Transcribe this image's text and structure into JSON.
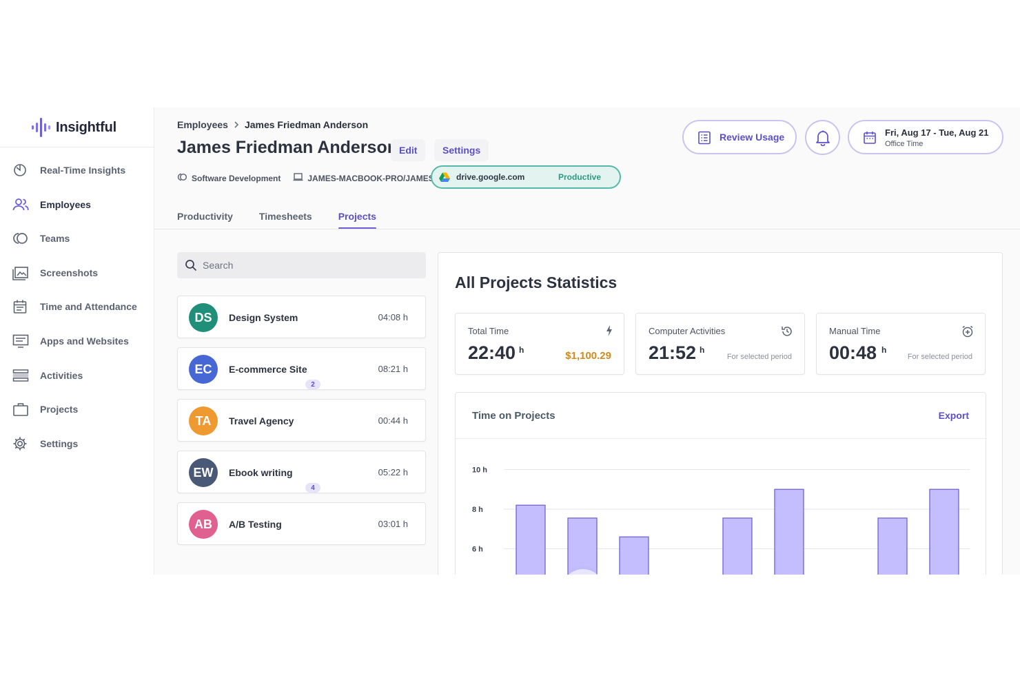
{
  "app": {
    "name": "Insightful"
  },
  "colors": {
    "accent": "#5a4fc8",
    "bar_fill": "#c4beff",
    "bar_stroke": "#6f63d4",
    "money": "#d08a1e",
    "productive": "#2a9a85"
  },
  "sidebar": {
    "items": [
      {
        "label": "Real-Time Insights",
        "icon": "realtime-icon"
      },
      {
        "label": "Employees",
        "icon": "users-icon",
        "active": true
      },
      {
        "label": "Teams",
        "icon": "teams-icon"
      },
      {
        "label": "Screenshots",
        "icon": "screenshots-icon"
      },
      {
        "label": "Time and Attendance",
        "icon": "calendar-icon"
      },
      {
        "label": "Apps and Websites",
        "icon": "monitor-icon"
      },
      {
        "label": "Activities",
        "icon": "activities-icon"
      },
      {
        "label": "Projects",
        "icon": "briefcase-icon"
      },
      {
        "label": "Settings",
        "icon": "gear-icon"
      }
    ]
  },
  "header": {
    "breadcrumb": {
      "parent": "Employees",
      "separator": ">",
      "current": "James Friedman Anderson"
    },
    "title": "James Friedman Anderson",
    "edit_label": "Edit",
    "settings_label": "Settings",
    "team": "Software Development",
    "computer": "JAMES-MACBOOK-PRO/JAMES",
    "site": {
      "domain": "drive.google.com",
      "status": "Productive"
    },
    "review_label": "Review Usage",
    "date_range": "Fri, Aug 17 - Tue, Aug 21",
    "date_sub": "Office Time"
  },
  "tabs": [
    {
      "label": "Productivity",
      "active": false
    },
    {
      "label": "Timesheets",
      "active": false
    },
    {
      "label": "Projects",
      "active": true
    }
  ],
  "search": {
    "placeholder": "Search"
  },
  "projects": [
    {
      "initials": "DS",
      "name": "Design System",
      "time": "04:08 h",
      "color": "#1f8f7a"
    },
    {
      "initials": "EC",
      "name": "E-commerce Site",
      "time": "08:21 h",
      "color": "#4767d4",
      "count": "2"
    },
    {
      "initials": "TA",
      "name": "Travel Agency",
      "time": "00:44 h",
      "color": "#ee9a30"
    },
    {
      "initials": "EW",
      "name": "Ebook writing",
      "time": "05:22 h",
      "color": "#4a5878",
      "count": "4"
    },
    {
      "initials": "AB",
      "name": "A/B Testing",
      "time": "03:01 h",
      "color": "#e0608f"
    }
  ],
  "stats": {
    "title": "All Projects Statistics",
    "total": {
      "label": "Total Time",
      "value": "22:40",
      "unit": "h",
      "money": "$1,100.29"
    },
    "computer": {
      "label": "Computer Activities",
      "value": "21:52",
      "unit": "h",
      "sub": "For selected period"
    },
    "manual": {
      "label": "Manual Time",
      "value": "00:48",
      "unit": "h",
      "sub": "For selected period"
    }
  },
  "chart": {
    "title": "Time on Projects",
    "export_label": "Export"
  },
  "chart_data": {
    "type": "bar",
    "title": "Time on Projects",
    "yticks": [
      "10 h",
      "8 h",
      "6 h"
    ],
    "ylim": [
      4.4,
      10
    ],
    "values": [
      8.2,
      7.55,
      6.6,
      4.5,
      7.55,
      9.0,
      4.5,
      7.55,
      9.0
    ],
    "grid": true
  }
}
